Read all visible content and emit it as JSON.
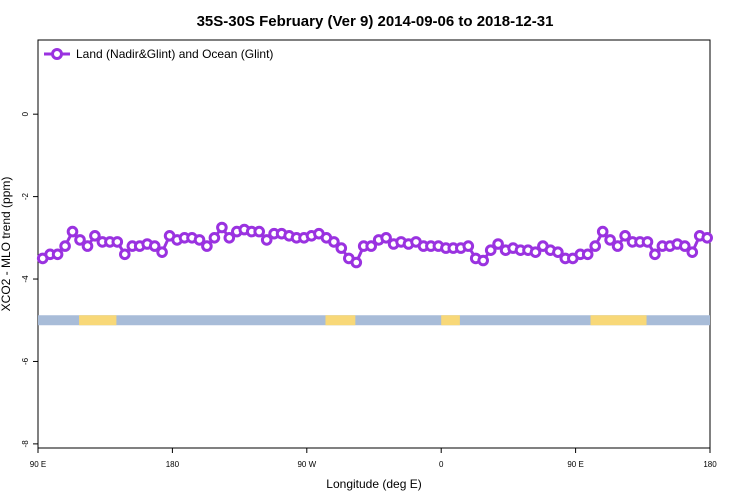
{
  "chart_data": {
    "type": "line",
    "title": "35S-30S February (Ver 9)   2014-09-06 to 2018-12-31",
    "xlabel": "Longitude (deg E)",
    "ylabel": "XCO2 - MLO trend (ppm)",
    "x_ticks": [
      "90 E",
      "180",
      "90 W",
      "0",
      "90 E",
      "180"
    ],
    "y_ticks": [
      "0",
      "-2",
      "-4",
      "-6",
      "-8"
    ],
    "y_tick_values": [
      0,
      -2,
      -4,
      -6,
      -8
    ],
    "xlim": [
      90,
      450
    ],
    "ylim": [
      -8.1,
      1.8
    ],
    "legend_position": "top-left",
    "grid": false,
    "series": [
      {
        "name": "Land (Nadir&Glint) and Ocean (Glint)",
        "color": "#9a32e0",
        "x": [
          92.5,
          96.5,
          100.5,
          104.5,
          108.5,
          112.5,
          116.5,
          120.5,
          124.5,
          128.5,
          132.5,
          136.5,
          140.5,
          144.5,
          148.5,
          152.5,
          156.5,
          160.5,
          164.5,
          168.5,
          172.5,
          176.5,
          180.5,
          184.5,
          188.5,
          192.5,
          196.5,
          200.5,
          204.5,
          208.5,
          212.5,
          216.5,
          220.5,
          224.5,
          228.5,
          232.5,
          236.5,
          240.5,
          244.5,
          248.5,
          252.5,
          256.5,
          260.5,
          264.5,
          268.5,
          272.5,
          276.5,
          280.5,
          284.5,
          288.5,
          292.5,
          296.5,
          300.5,
          304.5,
          308.5,
          312.5,
          316.5,
          320.5,
          324.5,
          328.5,
          332.5,
          336.5,
          340.5,
          344.5,
          348.5,
          352.5,
          356.5,
          360.5,
          364.5,
          368.5,
          372.5,
          376.5,
          380.5,
          384.5,
          388.5,
          392.5,
          396.5,
          400.5,
          404.5,
          408.5,
          412.5,
          416.5,
          420.5,
          424.5,
          428.5,
          432.5,
          436.5,
          440.5,
          444.5,
          448.5
        ],
        "y": [
          -3.5,
          -3.4,
          -3.4,
          -3.2,
          -2.85,
          -3.05,
          -3.2,
          -2.95,
          -3.1,
          -3.1,
          -3.1,
          -3.4,
          -3.2,
          -3.2,
          -3.15,
          -3.2,
          -3.35,
          -2.95,
          -3.05,
          -3.0,
          -3.0,
          -3.05,
          -3.2,
          -3.0,
          -2.75,
          -3.0,
          -2.85,
          -2.8,
          -2.85,
          -2.85,
          -3.05,
          -2.9,
          -2.9,
          -2.95,
          -3.0,
          -3.0,
          -2.95,
          -2.9,
          -3.0,
          -3.1,
          -3.25,
          -3.5,
          -3.6,
          -3.2,
          -3.2,
          -3.05,
          -3.0,
          -3.15,
          -3.1,
          -3.15,
          -3.1,
          -3.2,
          -3.2,
          -3.2,
          -3.25,
          -3.25,
          -3.25,
          -3.2,
          -3.5,
          -3.55,
          -3.3,
          -3.15,
          -3.3,
          -3.25,
          -3.3,
          -3.3,
          -3.35,
          -3.2,
          -3.3,
          -3.35,
          -3.5,
          -3.5,
          -3.4,
          -3.4,
          -3.2,
          -2.85,
          -3.05,
          -3.2,
          -2.95,
          -3.1,
          -3.1,
          -3.1,
          -3.4,
          -3.2,
          -3.2,
          -3.15,
          -3.2,
          -3.35,
          -2.95,
          -3.0
        ]
      }
    ],
    "land_strip": {
      "y": -5.0,
      "ocean_color": "#a8bcd8",
      "land_color": "#f8d878",
      "land_x_ranges": [
        [
          112,
          132
        ],
        [
          244,
          260
        ],
        [
          306,
          316
        ],
        [
          386,
          416
        ]
      ]
    }
  }
}
